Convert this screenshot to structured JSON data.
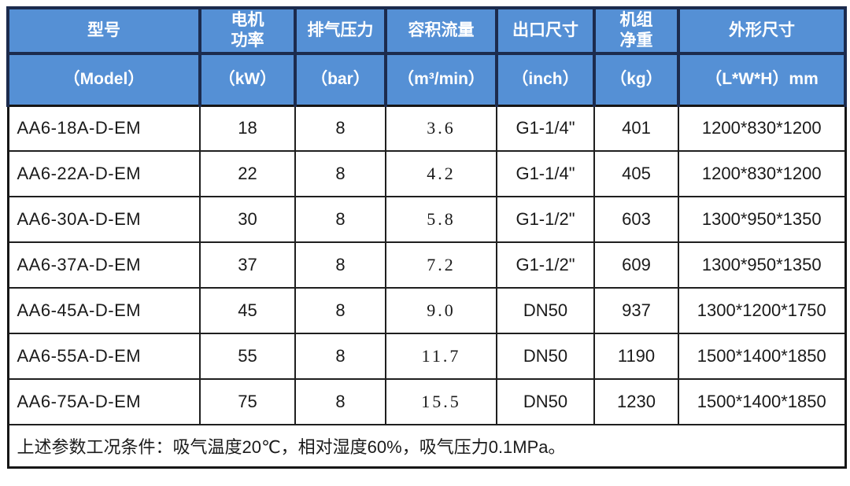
{
  "colors": {
    "header_bg": "#5590d5",
    "header_border": "#1c2b4d",
    "body_border": "#1f1f1f",
    "header_text": "#ffffff",
    "body_text": "#1a1a1a"
  },
  "table": {
    "columns": [
      {
        "label": "型号",
        "unit": "（Model）"
      },
      {
        "label": "电机\n功率",
        "unit": "（kW）"
      },
      {
        "label": "排气压力",
        "unit": "（bar）"
      },
      {
        "label": "容积流量",
        "unit": "（m³/min）"
      },
      {
        "label": "出口尺寸",
        "unit": "（inch）"
      },
      {
        "label": "机组\n净重",
        "unit": "（kg）"
      },
      {
        "label": "外形尺寸",
        "unit": "（L*W*H）mm"
      }
    ],
    "rows": [
      [
        "AA6-18A-D-EM",
        "18",
        "8",
        "3.6",
        "G1-1/4\"",
        "401",
        "1200*830*1200"
      ],
      [
        "AA6-22A-D-EM",
        "22",
        "8",
        "4.2",
        "G1-1/4\"",
        "405",
        "1200*830*1200"
      ],
      [
        "AA6-30A-D-EM",
        "30",
        "8",
        "5.8",
        "G1-1/2\"",
        "603",
        "1300*950*1350"
      ],
      [
        "AA6-37A-D-EM",
        "37",
        "8",
        "7.2",
        "G1-1/2\"",
        "609",
        "1300*950*1350"
      ],
      [
        "AA6-45A-D-EM",
        "45",
        "8",
        "9.0",
        "DN50",
        "937",
        "1300*1200*1750"
      ],
      [
        "AA6-55A-D-EM",
        "55",
        "8",
        "11.7",
        "DN50",
        "1190",
        "1500*1400*1850"
      ],
      [
        "AA6-75A-D-EM",
        "75",
        "8",
        "15.5",
        "DN50",
        "1230",
        "1500*1400*1850"
      ]
    ],
    "footnote": "上述参数工况条件：吸气温度20℃，相对湿度60%，吸气压力0.1MPa。"
  }
}
